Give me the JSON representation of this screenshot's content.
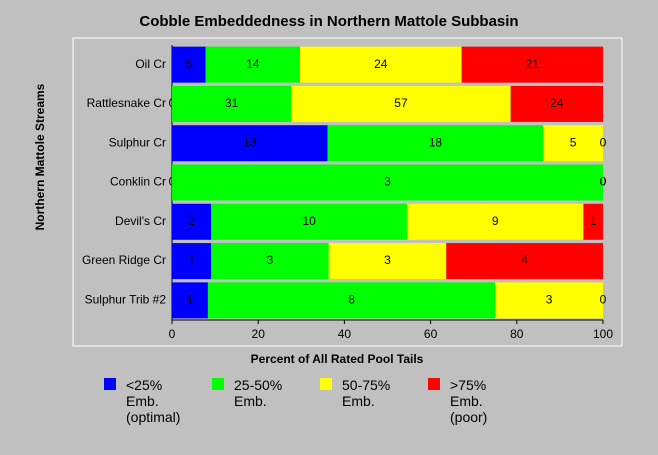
{
  "chart_data": {
    "type": "bar",
    "orientation": "horizontal",
    "stacked": "percent",
    "title": "Cobble Embeddedness in Northern Mattole Subbasin",
    "ylabel": "Northern Mattole Streams",
    "xlabel": "Percent of All Rated Pool Tails",
    "categories": [
      "Oil Cr",
      "Rattlesnake Cr",
      "Sulphur Cr",
      "Conklin Cr",
      "Devil's Cr",
      "Green Ridge Cr",
      "Sulphur Trib #2"
    ],
    "series": [
      {
        "name": "<25% Emb. (optimal)",
        "color": "#0000ff",
        "values": [
          5,
          0,
          13,
          0,
          2,
          1,
          1
        ]
      },
      {
        "name": "25-50% Emb.",
        "color": "#00ff00",
        "values": [
          14,
          31,
          18,
          3,
          10,
          3,
          8
        ]
      },
      {
        "name": "50-75% Emb.",
        "color": "#ffff00",
        "values": [
          24,
          57,
          5,
          0,
          9,
          3,
          3
        ]
      },
      {
        "name": ">75% Emb.(poor)",
        "color": "#ff0000",
        "values": [
          21,
          24,
          0,
          0,
          1,
          4,
          0
        ]
      }
    ],
    "xlim": [
      0,
      100
    ],
    "xticks": [
      0,
      20,
      40,
      60,
      80,
      100
    ],
    "legend": "bottom"
  }
}
